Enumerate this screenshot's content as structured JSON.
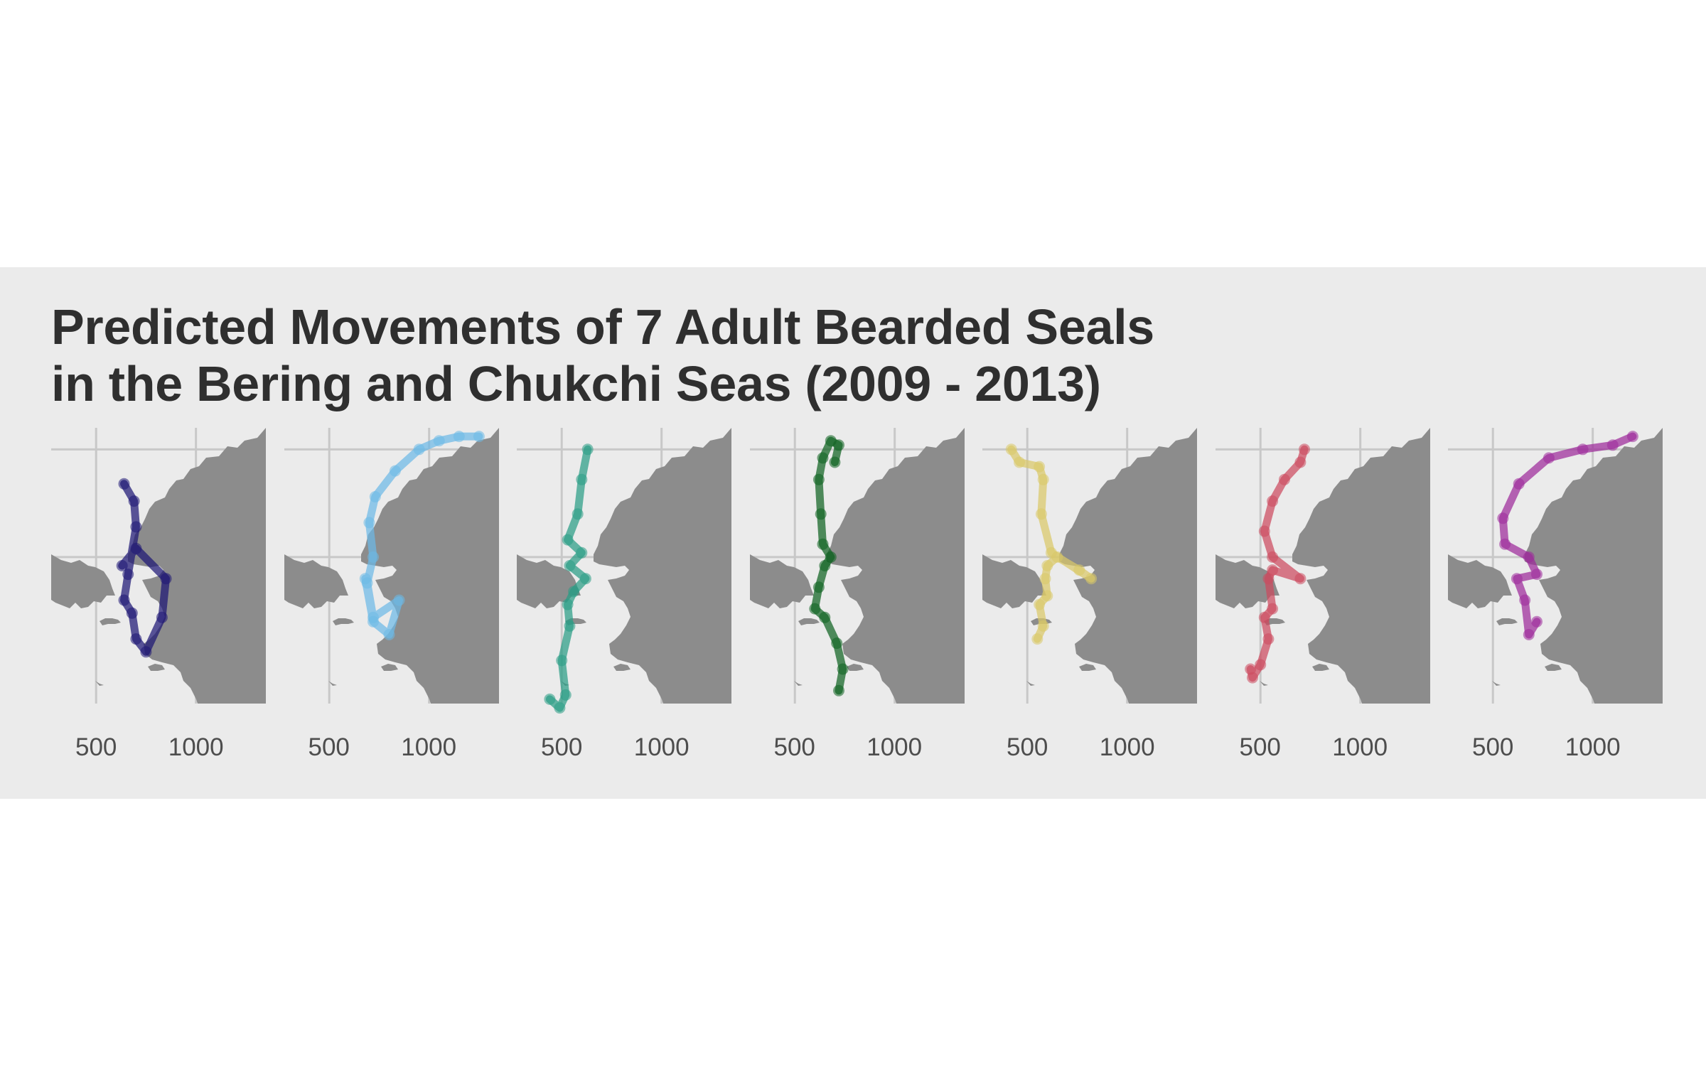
{
  "title": {
    "line1": "Predicted Movements of 7 Adult Bearded Seals",
    "line2": "in the Bering and Chukchi Seas (2009 - 2013)"
  },
  "colors": {
    "background": "#ebebeb",
    "land": "#8c8c8c",
    "grid": "#c8c8c8",
    "tick_text": "#4d4d4d",
    "title_text": "#2f2f2f"
  },
  "chart_data": {
    "type": "map",
    "facets": 7,
    "x_ticks": [
      500,
      1000
    ],
    "x_tick_labels": [
      "500",
      "1000"
    ],
    "grid": true,
    "legend": "none",
    "seals": [
      {
        "color": "#1d1675",
        "track": [
          [
            640,
            1370
          ],
          [
            690,
            1330
          ],
          [
            700,
            1270
          ],
          [
            660,
            1160
          ],
          [
            640,
            1100
          ],
          [
            680,
            1070
          ],
          [
            700,
            1010
          ],
          [
            750,
            980
          ],
          [
            830,
            1060
          ],
          [
            850,
            1150
          ],
          [
            700,
            1220
          ],
          [
            630,
            1180
          ]
        ]
      },
      {
        "color": "#6cb9e6",
        "track": [
          [
            680,
            1150
          ],
          [
            720,
            1050
          ],
          [
            800,
            1020
          ],
          [
            850,
            1100
          ],
          [
            720,
            1060
          ],
          [
            690,
            1140
          ],
          [
            720,
            1200
          ],
          [
            700,
            1280
          ],
          [
            730,
            1340
          ],
          [
            830,
            1400
          ],
          [
            950,
            1450
          ],
          [
            1050,
            1470
          ],
          [
            1150,
            1480
          ],
          [
            1250,
            1480
          ]
        ]
      },
      {
        "color": "#2a9d85",
        "track": [
          [
            440,
            870
          ],
          [
            490,
            850
          ],
          [
            520,
            880
          ],
          [
            500,
            960
          ],
          [
            540,
            1040
          ],
          [
            530,
            1090
          ],
          [
            560,
            1120
          ],
          [
            620,
            1150
          ],
          [
            540,
            1180
          ],
          [
            600,
            1210
          ],
          [
            530,
            1240
          ],
          [
            580,
            1300
          ],
          [
            600,
            1380
          ],
          [
            630,
            1450
          ]
        ]
      },
      {
        "color": "#0f6321",
        "track": [
          [
            720,
            890
          ],
          [
            740,
            940
          ],
          [
            710,
            1000
          ],
          [
            650,
            1060
          ],
          [
            600,
            1080
          ],
          [
            620,
            1130
          ],
          [
            650,
            1180
          ],
          [
            680,
            1200
          ],
          [
            640,
            1230
          ],
          [
            630,
            1300
          ],
          [
            620,
            1380
          ],
          [
            640,
            1430
          ],
          [
            680,
            1470
          ],
          [
            720,
            1460
          ],
          [
            700,
            1420
          ]
        ]
      },
      {
        "color": "#d9c868",
        "track": [
          [
            550,
            1010
          ],
          [
            580,
            1040
          ],
          [
            560,
            1090
          ],
          [
            600,
            1110
          ],
          [
            590,
            1150
          ],
          [
            600,
            1180
          ],
          [
            650,
            1200
          ],
          [
            760,
            1170
          ],
          [
            820,
            1150
          ],
          [
            620,
            1210
          ],
          [
            570,
            1300
          ],
          [
            580,
            1380
          ],
          [
            560,
            1410
          ],
          [
            460,
            1420
          ],
          [
            420,
            1450
          ]
        ]
      },
      {
        "color": "#cc4a5e",
        "track": [
          [
            450,
            940
          ],
          [
            460,
            920
          ],
          [
            500,
            950
          ],
          [
            540,
            1010
          ],
          [
            520,
            1060
          ],
          [
            560,
            1080
          ],
          [
            540,
            1150
          ],
          [
            560,
            1170
          ],
          [
            700,
            1150
          ],
          [
            560,
            1200
          ],
          [
            520,
            1260
          ],
          [
            560,
            1330
          ],
          [
            620,
            1380
          ],
          [
            700,
            1420
          ],
          [
            720,
            1450
          ]
        ]
      },
      {
        "color": "#9c2a9a",
        "track": [
          [
            720,
            1050
          ],
          [
            680,
            1020
          ],
          [
            660,
            1100
          ],
          [
            620,
            1150
          ],
          [
            720,
            1160
          ],
          [
            680,
            1200
          ],
          [
            560,
            1230
          ],
          [
            550,
            1290
          ],
          [
            630,
            1370
          ],
          [
            780,
            1430
          ],
          [
            950,
            1450
          ],
          [
            1100,
            1460
          ],
          [
            1200,
            1480
          ]
        ]
      }
    ]
  }
}
